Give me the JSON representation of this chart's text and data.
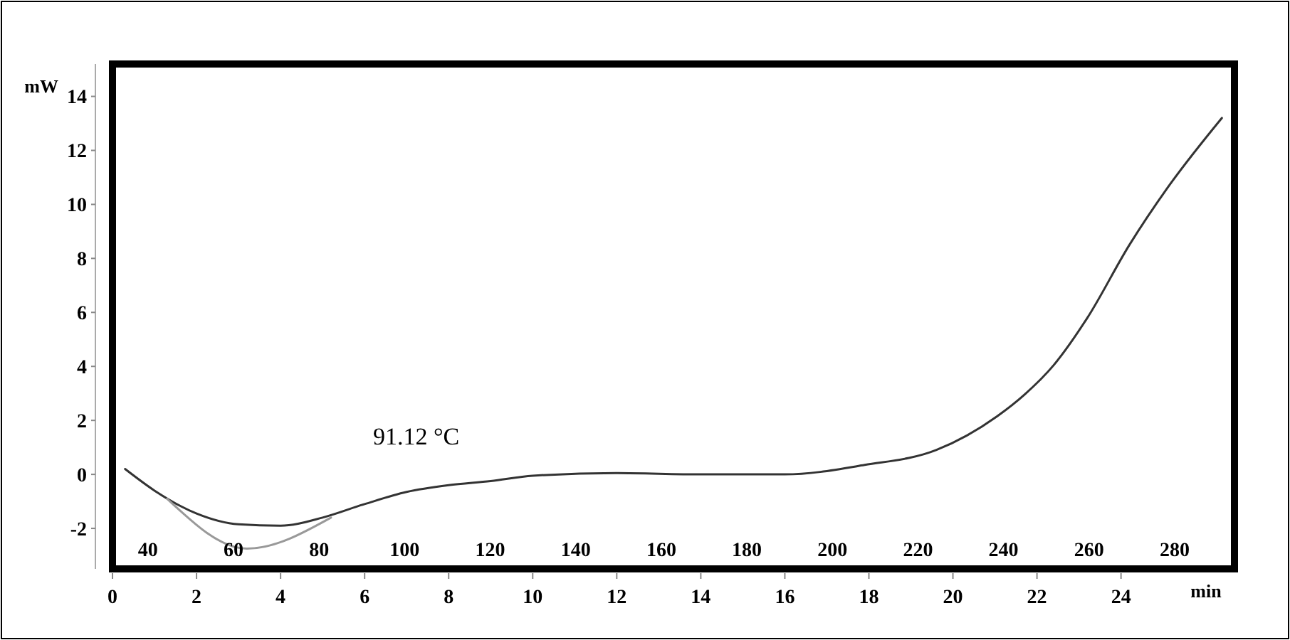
{
  "chart_data": {
    "type": "line",
    "ylabel": "mW",
    "xlabel": "min",
    "xlim": [
      0,
      26.7
    ],
    "xticks": [
      0,
      2,
      4,
      6,
      8,
      10,
      12,
      14,
      16,
      18,
      20,
      22,
      24
    ],
    "x2lim": [
      31.7,
      294
    ],
    "x2ticks": [
      40,
      60,
      80,
      100,
      120,
      140,
      160,
      180,
      200,
      220,
      240,
      260,
      280
    ],
    "ylim": [
      -3.5,
      15.2
    ],
    "yticks": [
      -2,
      0,
      2,
      4,
      6,
      8,
      10,
      12,
      14
    ],
    "grid": false,
    "annotations": [
      "91.12 °C"
    ],
    "series": [
      {
        "color": "#333333",
        "x": [
          0.3,
          1,
          2,
          3,
          4,
          5,
          6,
          7,
          8,
          9,
          10,
          12,
          14,
          16,
          17.9,
          19.6,
          21.05,
          21.7,
          22.4,
          23.2,
          24.2,
          25.1,
          26.4
        ],
        "values": [
          0.2,
          -0.6,
          -1.45,
          -1.85,
          -1.9,
          -1.6,
          -1.1,
          -0.65,
          -0.4,
          -0.25,
          -0.05,
          0.05,
          0,
          0,
          0.35,
          0.9,
          2.15,
          2.95,
          4.05,
          5.8,
          8.5,
          10.6,
          13.2
        ]
      },
      {
        "color": "#999999",
        "x": [
          1.3,
          3.2,
          5.2
        ],
        "values": [
          -0.9,
          -2.75,
          -1.6
        ]
      }
    ]
  }
}
